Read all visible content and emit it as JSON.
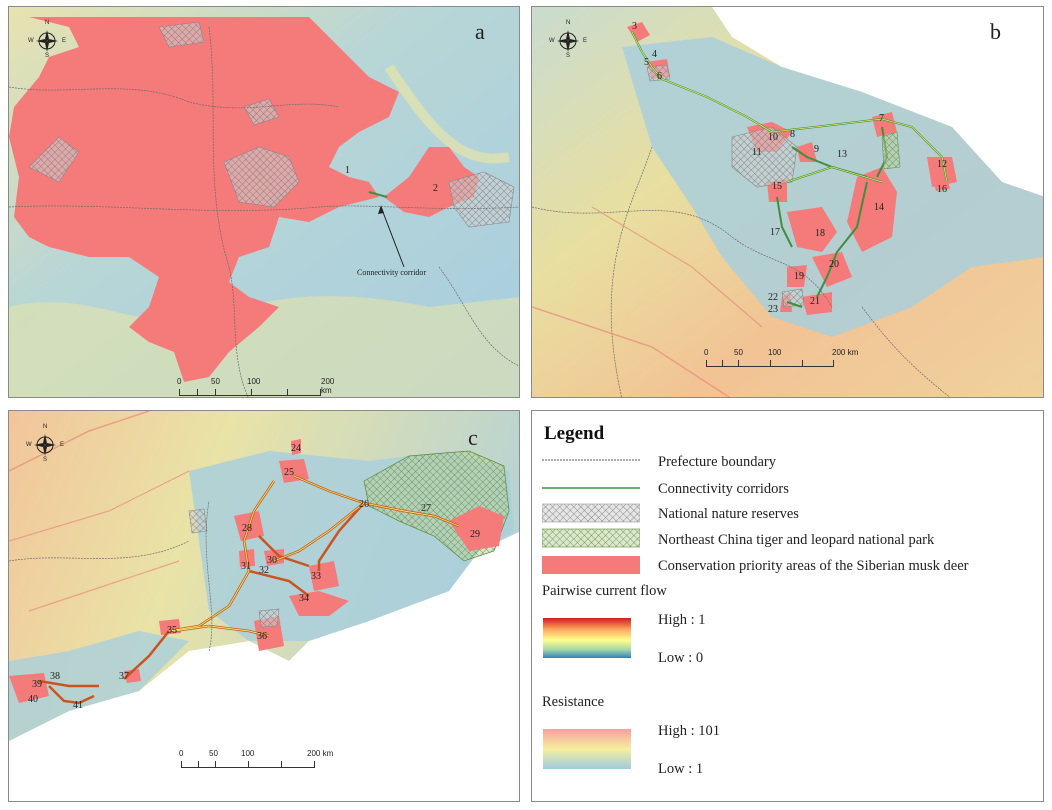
{
  "panels": {
    "a": {
      "letter": "a",
      "corridor_annotation": "Connectivity corridor",
      "area_labels": [
        "1",
        "2"
      ],
      "scale": [
        "0",
        "50",
        "100",
        "200 km"
      ]
    },
    "b": {
      "letter": "b",
      "area_labels": [
        "3",
        "4",
        "5",
        "6",
        "7",
        "8",
        "9",
        "10",
        "11",
        "12",
        "13",
        "14",
        "15",
        "16",
        "17",
        "18",
        "19",
        "20",
        "21",
        "22",
        "23"
      ],
      "scale": [
        "0",
        "50",
        "100",
        "200 km"
      ]
    },
    "c": {
      "letter": "c",
      "area_labels": [
        "24",
        "25",
        "26",
        "27",
        "28",
        "29",
        "30",
        "31",
        "32",
        "33",
        "34",
        "35",
        "36",
        "37",
        "38",
        "39",
        "40",
        "41"
      ],
      "scale": [
        "0",
        "50",
        "100",
        "200 km"
      ]
    }
  },
  "compass": {
    "n": "N",
    "s": "S",
    "e": "E",
    "w": "W"
  },
  "legend": {
    "title": "Legend",
    "items": [
      {
        "label": "Prefecture boundary",
        "symbol": "dotted-line",
        "color": "#555555"
      },
      {
        "label": "Connectivity corridors",
        "symbol": "line",
        "color": "#3f8f3f"
      },
      {
        "label": "National nature reserves",
        "symbol": "crosshatch-gray",
        "color": "#9a9a9a"
      },
      {
        "label": "Northeast China tiger and leopard national park",
        "symbol": "crosshatch-green",
        "color": "#6e9a4e"
      },
      {
        "label": "Conservation priority areas of the Siberian musk deer",
        "symbol": "fill",
        "color": "#f57a7a"
      }
    ],
    "current_flow": {
      "title": "Pairwise current flow",
      "high": "High : 1",
      "low": "Low : 0"
    },
    "resistance": {
      "title": "Resistance",
      "high": "High : 101",
      "low": "Low : 1"
    }
  },
  "colors": {
    "priority": "#f57a7a",
    "low_resistance": "#9ac7d8",
    "mid_resistance": "#f3ec9e",
    "high_resistance": "#f5a98c",
    "corridor": "#3f8f3f"
  }
}
